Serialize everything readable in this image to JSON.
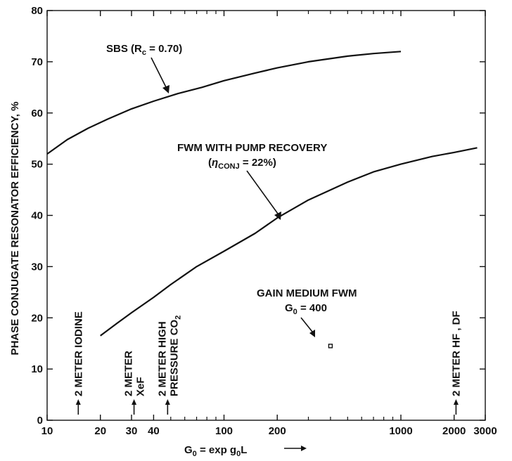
{
  "chart_data": {
    "type": "line",
    "x_scale": "log",
    "xlim": [
      10,
      3000
    ],
    "ylim": [
      0,
      80
    ],
    "grid": false,
    "ylabel": "PHASE CONJUGATE RESONATOR EFFICIENCY, %",
    "xlabel": {
      "base": "G",
      "sub": "0",
      "rest": " = exp g",
      "sub2": "0",
      "tail": "L"
    },
    "x_ticks": [
      10,
      20,
      30,
      40,
      100,
      200,
      1000,
      2000,
      3000
    ],
    "x_tick_labels": [
      "10",
      "20",
      "30",
      "40",
      "100",
      "200",
      "1000",
      "2000",
      "3000"
    ],
    "y_ticks": [
      0,
      10,
      20,
      30,
      40,
      50,
      60,
      70,
      80
    ],
    "y_tick_labels": [
      "0",
      "10",
      "20",
      "30",
      "40",
      "50",
      "60",
      "70",
      "80"
    ],
    "series": [
      {
        "name_main": "SBS (R",
        "name_sub": "c",
        "name_tail": " = 0.70)",
        "x": [
          10,
          13,
          17,
          22,
          30,
          40,
          55,
          75,
          100,
          150,
          200,
          300,
          500,
          700,
          1000
        ],
        "y": [
          52,
          54.8,
          57,
          58.8,
          60.8,
          62.3,
          63.8,
          65,
          66.3,
          67.8,
          68.8,
          70,
          71.1,
          71.6,
          72
        ]
      },
      {
        "name_line1": "FWM WITH PUMP RECOVERY",
        "name_eta": "η",
        "name_sub": "CONJ",
        "name_tail": " = 22%)",
        "x": [
          20,
          25,
          30,
          40,
          50,
          70,
          100,
          150,
          200,
          300,
          500,
          700,
          1000,
          1500,
          2000,
          2700
        ],
        "y": [
          16.5,
          19,
          21,
          24,
          26.5,
          30,
          33,
          36.5,
          39.5,
          43,
          46.5,
          48.5,
          50,
          51.5,
          52.3,
          53.2
        ]
      }
    ],
    "point": {
      "label": "GAIN MEDIUM FWM",
      "sub_label_main": "G",
      "sub_label_sub": "0",
      "sub_label_tail": " = 400",
      "x": 400,
      "y": 14.5
    },
    "markers": [
      {
        "x": 15,
        "line1": "2 METER IODINE",
        "line2": ""
      },
      {
        "x": 31,
        "line1": "2 METER",
        "line2": "XeF"
      },
      {
        "x": 48,
        "line1": "2 METER HIGH",
        "line2": "PRESSURE CO",
        "line2_sub": "2"
      },
      {
        "x": 2050,
        "line1": "2 METER  HF , DF",
        "line2": ""
      }
    ]
  }
}
